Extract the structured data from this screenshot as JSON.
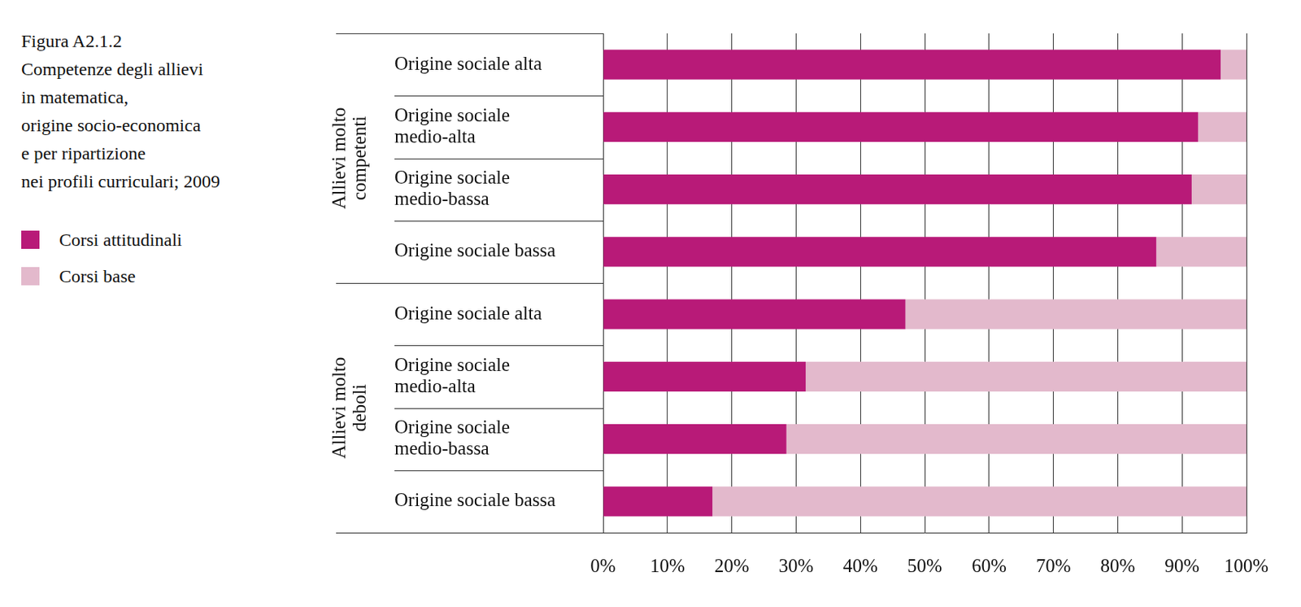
{
  "chart_data": {
    "type": "bar",
    "title": "Figura A2.1.2",
    "subtitle": [
      "Competenze degli allievi",
      "in matematica,",
      "origine socio-economica",
      "e per ripartizione",
      "nei profili curriculari; 2009"
    ],
    "orientation": "horizontal",
    "stacked": true,
    "grid": true,
    "groups": [
      {
        "name": [
          "Allievi molto",
          "competenti"
        ],
        "categories": [
          "Origine sociale alta",
          [
            "Origine sociale",
            "medio-alta"
          ],
          [
            "Origine sociale",
            "medio-bassa"
          ],
          "Origine sociale bassa"
        ]
      },
      {
        "name": [
          "Allievi molto",
          "deboli"
        ],
        "categories": [
          "Origine sociale alta",
          [
            "Origine sociale",
            "medio-alta"
          ],
          [
            "Origine sociale",
            "medio-bassa"
          ],
          "Origine sociale bassa"
        ]
      }
    ],
    "series": [
      {
        "name": "Corsi attitudinali",
        "color": "#b81a78",
        "values": [
          96,
          92.5,
          91.5,
          86,
          47,
          31.5,
          28.5,
          17
        ]
      },
      {
        "name": "Corsi base",
        "color": "#e3b9cc",
        "values": [
          4,
          7.5,
          8.5,
          14,
          53,
          68.5,
          71.5,
          83
        ]
      }
    ],
    "xlim": [
      0,
      100
    ],
    "xticks": [
      {
        "value": 0,
        "label": "0%"
      },
      {
        "value": 10,
        "label": "10%"
      },
      {
        "value": 20,
        "label": "20%"
      },
      {
        "value": 30,
        "label": "30%"
      },
      {
        "value": 40,
        "label": "40%"
      },
      {
        "value": 50,
        "label": "50%"
      },
      {
        "value": 60,
        "label": "60%"
      },
      {
        "value": 70,
        "label": "70%"
      },
      {
        "value": 80,
        "label": "80%"
      },
      {
        "value": 90,
        "label": "90%"
      },
      {
        "value": 100,
        "label": "100%"
      }
    ]
  }
}
